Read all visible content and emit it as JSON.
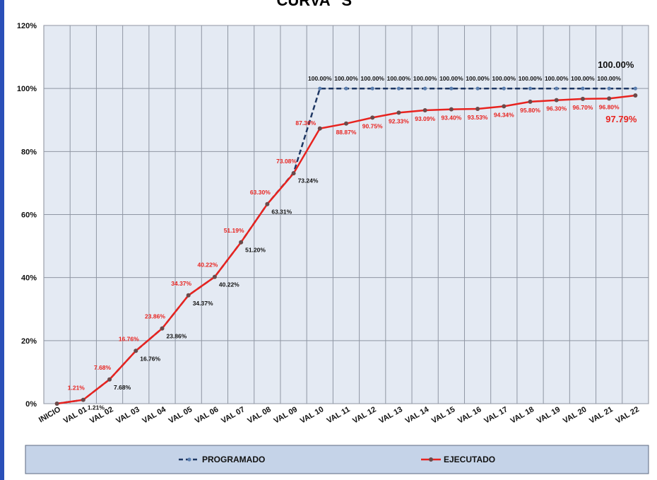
{
  "chart_data": {
    "type": "line",
    "title": "CURVA \"S\"",
    "categories": [
      "INICIO",
      "VAL 01",
      "VAL 02",
      "VAL 03",
      "VAL 04",
      "VAL 05",
      "VAL 06",
      "VAL 07",
      "VAL 08",
      "VAL 09",
      "VAL 10",
      "VAL 11",
      "VAL 12",
      "VAL 13",
      "VAL 14",
      "VAL 15",
      "VAL 16",
      "VAL 17",
      "VAL 18",
      "VAL 19",
      "VAL 20",
      "VAL 21",
      "VAL 22"
    ],
    "y_ticks": [
      "0%",
      "20%",
      "40%",
      "60%",
      "80%",
      "100%",
      "120%"
    ],
    "ylim": [
      0,
      120
    ],
    "grid": true,
    "legend_position": "bottom",
    "series": [
      {
        "name": "PROGRAMADO",
        "color": "#1f3864",
        "style": "dashed",
        "values": [
          0,
          1.21,
          7.68,
          16.76,
          23.86,
          34.37,
          40.22,
          51.2,
          63.31,
          73.24,
          100,
          100,
          100,
          100,
          100,
          100,
          100,
          100,
          100,
          100,
          100,
          100,
          100
        ],
        "labels": [
          "",
          "1.21%",
          "7.68%",
          "16.76%",
          "23.86%",
          "34.37%",
          "40.22%",
          "51.20%",
          "63.31%",
          "73.24%",
          "100.00%",
          "100.00%",
          "100.00%",
          "100.00%",
          "100.00%",
          "100.00%",
          "100.00%",
          "100.00%",
          "100.00%",
          "100.00%",
          "100.00%",
          "100.00%",
          "100.00%"
        ]
      },
      {
        "name": "EJECUTADO",
        "color": "#e8231f",
        "style": "solid",
        "values": [
          0,
          1.21,
          7.68,
          16.76,
          23.86,
          34.37,
          40.22,
          51.19,
          63.3,
          73.08,
          87.3,
          88.87,
          90.75,
          92.33,
          93.09,
          93.4,
          93.53,
          94.34,
          95.8,
          96.3,
          96.7,
          96.8,
          97.79
        ],
        "labels": [
          "",
          "1.21%",
          "7.68%",
          "16.76%",
          "23.86%",
          "34.37%",
          "40.22%",
          "51.19%",
          "63.30%",
          "73.08%",
          "87.30%",
          "88.87%",
          "90.75%",
          "92.33%",
          "93.09%",
          "93.40%",
          "93.53%",
          "94.34%",
          "95.80%",
          "96.30%",
          "96.70%",
          "96.80%",
          "97.79%"
        ]
      }
    ]
  }
}
